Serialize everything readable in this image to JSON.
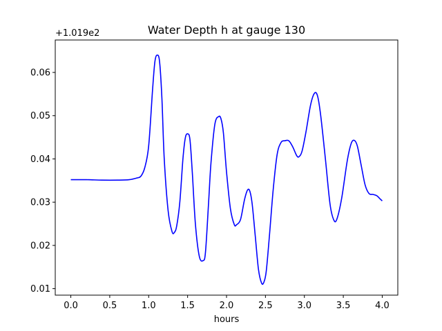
{
  "chart_data": {
    "type": "line",
    "title": "Water Depth h at gauge 130",
    "xlabel": "hours",
    "ylabel": "",
    "y_offset_label": "+1.019e2",
    "xlim": [
      -0.2,
      4.2
    ],
    "ylim": [
      0.0085,
      0.0675
    ],
    "x_ticks": [
      0.0,
      0.5,
      1.0,
      1.5,
      2.0,
      2.5,
      3.0,
      3.5,
      4.0
    ],
    "x_tick_labels": [
      "0.0",
      "0.5",
      "1.0",
      "1.5",
      "2.0",
      "2.5",
      "3.0",
      "3.5",
      "4.0"
    ],
    "y_ticks": [
      0.01,
      0.02,
      0.03,
      0.04,
      0.05,
      0.06
    ],
    "y_tick_labels": [
      "0.01",
      "0.02",
      "0.03",
      "0.04",
      "0.05",
      "0.06"
    ],
    "grid": false,
    "series": [
      {
        "color": "#0000ff",
        "x": [
          0.0,
          0.2,
          0.4,
          0.6,
          0.75,
          0.85,
          0.9,
          0.95,
          1.0,
          1.05,
          1.08,
          1.11,
          1.14,
          1.17,
          1.2,
          1.25,
          1.3,
          1.33,
          1.36,
          1.4,
          1.44,
          1.47,
          1.5,
          1.53,
          1.56,
          1.6,
          1.65,
          1.7,
          1.73,
          1.77,
          1.8,
          1.85,
          1.9,
          1.93,
          1.96,
          2.0,
          2.05,
          2.1,
          2.13,
          2.18,
          2.23,
          2.27,
          2.3,
          2.33,
          2.37,
          2.41,
          2.45,
          2.48,
          2.51,
          2.55,
          2.6,
          2.65,
          2.7,
          2.75,
          2.8,
          2.85,
          2.9,
          2.93,
          2.97,
          3.02,
          3.08,
          3.13,
          3.17,
          3.21,
          3.27,
          3.33,
          3.38,
          3.42,
          3.48,
          3.55,
          3.6,
          3.64,
          3.68,
          3.73,
          3.78,
          3.83,
          3.88,
          3.93,
          3.97,
          4.0
        ],
        "y": [
          0.0352,
          0.0352,
          0.0351,
          0.0351,
          0.0352,
          0.0356,
          0.036,
          0.038,
          0.043,
          0.056,
          0.0625,
          0.064,
          0.0625,
          0.054,
          0.04,
          0.028,
          0.0232,
          0.023,
          0.0245,
          0.03,
          0.04,
          0.0448,
          0.0458,
          0.0445,
          0.037,
          0.025,
          0.0175,
          0.0165,
          0.0185,
          0.03,
          0.039,
          0.048,
          0.0498,
          0.0492,
          0.046,
          0.037,
          0.0285,
          0.0248,
          0.0248,
          0.026,
          0.0305,
          0.0328,
          0.0325,
          0.0295,
          0.022,
          0.0145,
          0.0113,
          0.0115,
          0.014,
          0.022,
          0.033,
          0.041,
          0.0438,
          0.0442,
          0.0442,
          0.0428,
          0.0408,
          0.0405,
          0.0418,
          0.0462,
          0.0525,
          0.0552,
          0.0545,
          0.05,
          0.04,
          0.0295,
          0.0258,
          0.0262,
          0.031,
          0.0395,
          0.0435,
          0.0443,
          0.043,
          0.0385,
          0.034,
          0.032,
          0.0318,
          0.0315,
          0.0308,
          0.0303
        ]
      }
    ]
  }
}
